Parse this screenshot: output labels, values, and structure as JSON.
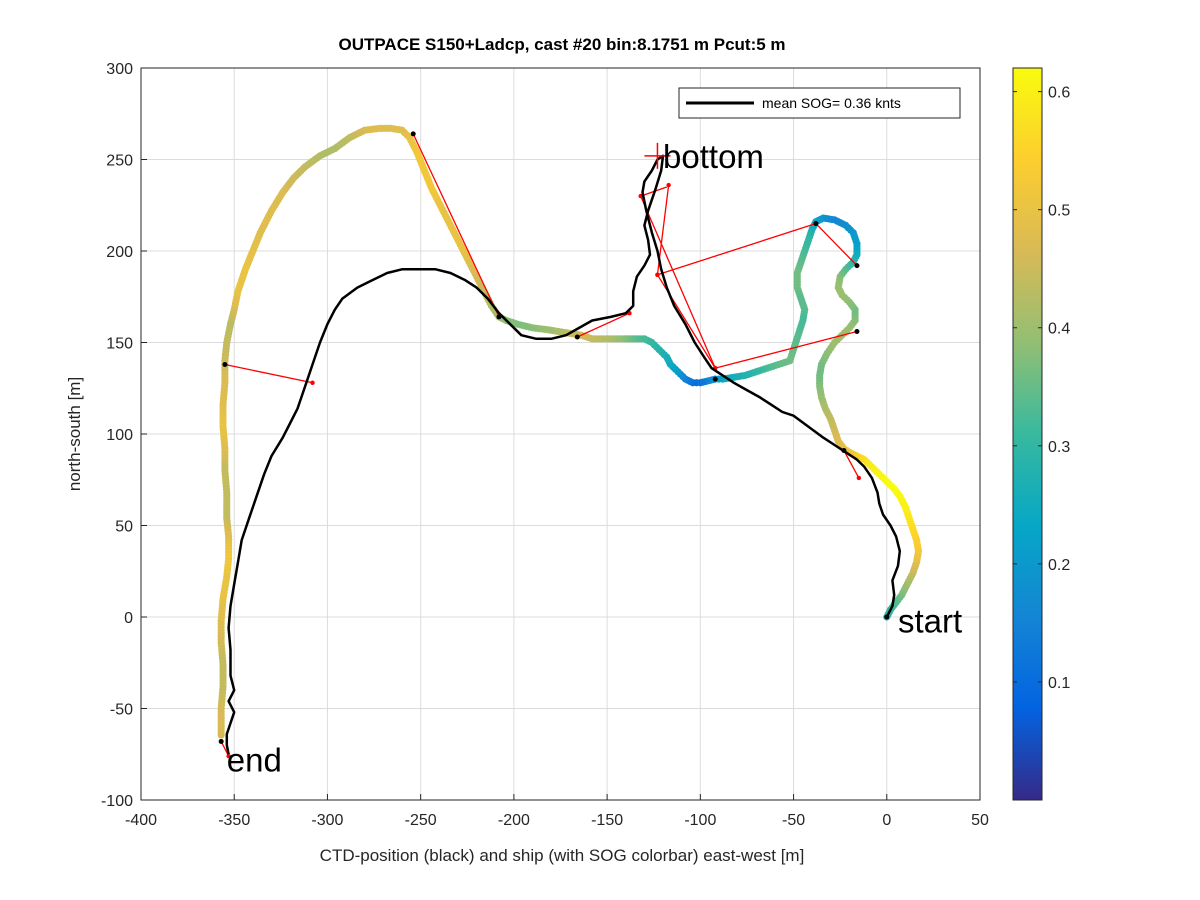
{
  "chart_data": {
    "type": "scatter",
    "title": "OUTPACE S150+Ladcp, cast #20 bin:8.1751 m  Pcut:5 m",
    "xlabel": "CTD-position (black) and ship (with SOG colorbar) east-west [m]",
    "ylabel": "north-south [m]",
    "xlim": [
      -400,
      50
    ],
    "ylim": [
      -100,
      300
    ],
    "xticks": [
      -400,
      -350,
      -300,
      -250,
      -200,
      -150,
      -100,
      -50,
      0,
      50
    ],
    "yticks": [
      -100,
      -50,
      0,
      50,
      100,
      150,
      200,
      250,
      300
    ],
    "grid": true,
    "legend": {
      "entry": "mean SOG=  0.36 knts",
      "placement": "top-right"
    },
    "colorbar": {
      "range": [
        0.0,
        0.62
      ],
      "ticks": [
        "0.1",
        "0.2",
        "0.3",
        "0.4",
        "0.5",
        "0.6"
      ],
      "tick_values": [
        0.1,
        0.2,
        0.3,
        0.4,
        0.5,
        0.6
      ],
      "colormap": "parula"
    },
    "annotations": [
      {
        "text": "bottom",
        "x": -120,
        "y": 252
      },
      {
        "text": "start",
        "x": 6,
        "y": -2
      },
      {
        "text": "end",
        "x": -354,
        "y": -78
      }
    ],
    "ctd_track": {
      "name": "CTD-position",
      "color": "#000000",
      "points": [
        [
          0,
          0
        ],
        [
          3,
          6
        ],
        [
          4,
          12
        ],
        [
          3,
          20
        ],
        [
          6,
          28
        ],
        [
          7,
          36
        ],
        [
          5,
          44
        ],
        [
          2,
          50
        ],
        [
          -2,
          56
        ],
        [
          -4,
          62
        ],
        [
          -5,
          68
        ],
        [
          -8,
          76
        ],
        [
          -12,
          82
        ],
        [
          -16,
          86
        ],
        [
          -22,
          90
        ],
        [
          -28,
          94
        ],
        [
          -34,
          98
        ],
        [
          -42,
          104
        ],
        [
          -50,
          110
        ],
        [
          -56,
          112
        ],
        [
          -62,
          116
        ],
        [
          -68,
          120
        ],
        [
          -75,
          124
        ],
        [
          -82,
          128
        ],
        [
          -88,
          132
        ],
        [
          -94,
          136
        ],
        [
          -98,
          142
        ],
        [
          -103,
          150
        ],
        [
          -108,
          160
        ],
        [
          -114,
          170
        ],
        [
          -118,
          180
        ],
        [
          -121,
          190
        ],
        [
          -123,
          200
        ],
        [
          -126,
          210
        ],
        [
          -129,
          222
        ],
        [
          -131,
          232
        ],
        [
          -130,
          238
        ],
        [
          -126,
          244
        ],
        [
          -123,
          250
        ],
        [
          -120,
          252
        ],
        [
          -121,
          244
        ],
        [
          -124,
          234
        ],
        [
          -128,
          222
        ],
        [
          -130,
          214
        ],
        [
          -128,
          206
        ],
        [
          -127,
          198
        ],
        [
          -130,
          192
        ],
        [
          -134,
          186
        ],
        [
          -136,
          178
        ],
        [
          -136,
          170
        ],
        [
          -140,
          166
        ],
        [
          -148,
          164
        ],
        [
          -158,
          162
        ],
        [
          -165,
          158
        ],
        [
          -172,
          154
        ],
        [
          -180,
          152
        ],
        [
          -188,
          152
        ],
        [
          -196,
          154
        ],
        [
          -202,
          160
        ],
        [
          -208,
          166
        ],
        [
          -214,
          174
        ],
        [
          -220,
          180
        ],
        [
          -226,
          184
        ],
        [
          -234,
          188
        ],
        [
          -242,
          190
        ],
        [
          -252,
          190
        ],
        [
          -260,
          190
        ],
        [
          -268,
          188
        ],
        [
          -276,
          184
        ],
        [
          -284,
          180
        ],
        [
          -292,
          174
        ],
        [
          -296,
          168
        ],
        [
          -300,
          160
        ],
        [
          -304,
          150
        ],
        [
          -308,
          138
        ],
        [
          -312,
          126
        ],
        [
          -316,
          114
        ],
        [
          -320,
          106
        ],
        [
          -324,
          98
        ],
        [
          -330,
          88
        ],
        [
          -334,
          78
        ],
        [
          -338,
          66
        ],
        [
          -342,
          54
        ],
        [
          -346,
          42
        ],
        [
          -348,
          30
        ],
        [
          -350,
          18
        ],
        [
          -352,
          6
        ],
        [
          -353,
          -6
        ],
        [
          -352,
          -18
        ],
        [
          -352,
          -32
        ],
        [
          -350,
          -40
        ],
        [
          -353,
          -46
        ],
        [
          -350,
          -52
        ],
        [
          -352,
          -58
        ],
        [
          -354,
          -64
        ],
        [
          -354,
          -70
        ],
        [
          -353,
          -75
        ]
      ]
    },
    "ship_track": {
      "name": "ship (SOG)",
      "points": [
        [
          0,
          0,
          0.28
        ],
        [
          2,
          4,
          0.3
        ],
        [
          5,
          8,
          0.33
        ],
        [
          8,
          12,
          0.36
        ],
        [
          11,
          18,
          0.4
        ],
        [
          14,
          24,
          0.44
        ],
        [
          16,
          30,
          0.48
        ],
        [
          17,
          36,
          0.52
        ],
        [
          16,
          42,
          0.54
        ],
        [
          14,
          48,
          0.56
        ],
        [
          12,
          54,
          0.58
        ],
        [
          10,
          60,
          0.6
        ],
        [
          7,
          66,
          0.61
        ],
        [
          4,
          70,
          0.62
        ],
        [
          0,
          74,
          0.62
        ],
        [
          -4,
          78,
          0.61
        ],
        [
          -8,
          82,
          0.6
        ],
        [
          -12,
          86,
          0.58
        ],
        [
          -16,
          88,
          0.55
        ],
        [
          -20,
          90,
          0.52
        ],
        [
          -23,
          92,
          0.5
        ],
        [
          -26,
          96,
          0.48
        ],
        [
          -28,
          102,
          0.46
        ],
        [
          -30,
          108,
          0.44
        ],
        [
          -33,
          114,
          0.42
        ],
        [
          -35,
          120,
          0.4
        ],
        [
          -36,
          126,
          0.38
        ],
        [
          -36,
          132,
          0.36
        ],
        [
          -35,
          138,
          0.36
        ],
        [
          -32,
          144,
          0.38
        ],
        [
          -28,
          150,
          0.4
        ],
        [
          -24,
          154,
          0.4
        ],
        [
          -20,
          158,
          0.4
        ],
        [
          -17,
          162,
          0.38
        ],
        [
          -17,
          168,
          0.36
        ],
        [
          -20,
          172,
          0.38
        ],
        [
          -24,
          176,
          0.4
        ],
        [
          -26,
          180,
          0.4
        ],
        [
          -25,
          186,
          0.38
        ],
        [
          -22,
          190,
          0.34
        ],
        [
          -18,
          194,
          0.3
        ],
        [
          -16,
          198,
          0.26
        ],
        [
          -16,
          204,
          0.22
        ],
        [
          -18,
          210,
          0.2
        ],
        [
          -22,
          214,
          0.18
        ],
        [
          -28,
          217,
          0.16
        ],
        [
          -34,
          218,
          0.18
        ],
        [
          -38,
          216,
          0.22
        ],
        [
          -40,
          212,
          0.26
        ],
        [
          -42,
          206,
          0.3
        ],
        [
          -44,
          200,
          0.32
        ],
        [
          -46,
          194,
          0.34
        ],
        [
          -48,
          188,
          0.36
        ],
        [
          -48,
          180,
          0.36
        ],
        [
          -46,
          174,
          0.34
        ],
        [
          -44,
          168,
          0.34
        ],
        [
          -45,
          162,
          0.32
        ],
        [
          -52,
          140,
          0.36
        ],
        [
          -58,
          138,
          0.35
        ],
        [
          -64,
          136,
          0.33
        ],
        [
          -70,
          134,
          0.3
        ],
        [
          -76,
          132,
          0.28
        ],
        [
          -82,
          131,
          0.26
        ],
        [
          -88,
          130,
          0.24
        ],
        [
          -92,
          130,
          0.2
        ],
        [
          -96,
          129,
          0.16
        ],
        [
          -100,
          128,
          0.12
        ],
        [
          -104,
          128,
          0.1
        ],
        [
          -108,
          130,
          0.14
        ],
        [
          -112,
          134,
          0.2
        ],
        [
          -116,
          138,
          0.24
        ],
        [
          -118,
          142,
          0.26
        ],
        [
          -122,
          146,
          0.28
        ],
        [
          -126,
          150,
          0.3
        ],
        [
          -130,
          152,
          0.32
        ],
        [
          -136,
          152,
          0.34
        ],
        [
          -142,
          152,
          0.38
        ],
        [
          -150,
          152,
          0.42
        ],
        [
          -158,
          152,
          0.44
        ],
        [
          -164,
          154,
          0.46
        ],
        [
          -170,
          155,
          0.44
        ],
        [
          -176,
          156,
          0.42
        ],
        [
          -182,
          157,
          0.4
        ],
        [
          -190,
          158,
          0.38
        ],
        [
          -198,
          160,
          0.37
        ],
        [
          -204,
          162,
          0.38
        ],
        [
          -208,
          164,
          0.4
        ],
        [
          -212,
          170,
          0.42
        ],
        [
          -216,
          178,
          0.44
        ],
        [
          -220,
          186,
          0.46
        ],
        [
          -224,
          194,
          0.48
        ],
        [
          -228,
          202,
          0.5
        ],
        [
          -232,
          210,
          0.5
        ],
        [
          -236,
          218,
          0.5
        ],
        [
          -240,
          226,
          0.5
        ],
        [
          -244,
          234,
          0.52
        ],
        [
          -248,
          244,
          0.52
        ],
        [
          -252,
          254,
          0.52
        ],
        [
          -256,
          262,
          0.5
        ],
        [
          -260,
          266,
          0.48
        ],
        [
          -266,
          267,
          0.48
        ],
        [
          -272,
          267,
          0.48
        ],
        [
          -280,
          266,
          0.47
        ],
        [
          -288,
          262,
          0.44
        ],
        [
          -296,
          256,
          0.42
        ],
        [
          -304,
          252,
          0.42
        ],
        [
          -312,
          246,
          0.44
        ],
        [
          -318,
          240,
          0.45
        ],
        [
          -324,
          232,
          0.47
        ],
        [
          -330,
          222,
          0.48
        ],
        [
          -336,
          210,
          0.48
        ],
        [
          -340,
          200,
          0.49
        ],
        [
          -344,
          190,
          0.5
        ],
        [
          -348,
          178,
          0.5
        ],
        [
          -350,
          168,
          0.47
        ],
        [
          -352,
          160,
          0.43
        ],
        [
          -354,
          150,
          0.44
        ],
        [
          -355,
          140,
          0.45
        ],
        [
          -355,
          128,
          0.47
        ],
        [
          -356,
          116,
          0.48
        ],
        [
          -356,
          104,
          0.5
        ],
        [
          -355,
          92,
          0.48
        ],
        [
          -355,
          80,
          0.44
        ],
        [
          -354,
          68,
          0.44
        ],
        [
          -354,
          54,
          0.44
        ],
        [
          -353,
          44,
          0.48
        ],
        [
          -353,
          32,
          0.52
        ],
        [
          -354,
          22,
          0.5
        ],
        [
          -356,
          10,
          0.5
        ],
        [
          -357,
          -2,
          0.48
        ],
        [
          -357,
          -14,
          0.46
        ],
        [
          -356,
          -26,
          0.44
        ],
        [
          -356,
          -38,
          0.44
        ],
        [
          -357,
          -50,
          0.46
        ],
        [
          -357,
          -60,
          0.47
        ],
        [
          -357,
          -66,
          0.46
        ]
      ]
    },
    "connector_lines": {
      "color": "#ff0000",
      "segments": [
        [
          [
            -355,
            138
          ],
          [
            -308,
            128
          ]
        ],
        [
          [
            -254,
            264
          ],
          [
            -208,
            164
          ]
        ],
        [
          [
            -166,
            153
          ],
          [
            -138,
            166
          ]
        ],
        [
          [
            -118,
            235
          ],
          [
            -132,
            230
          ]
        ],
        [
          [
            -132,
            230
          ],
          [
            -92,
            136
          ]
        ],
        [
          [
            -38,
            215
          ],
          [
            -123,
            187
          ]
        ],
        [
          [
            -123,
            187
          ],
          [
            -117,
            236
          ]
        ],
        [
          [
            -16,
            192
          ],
          [
            -38,
            215
          ]
        ],
        [
          [
            -16,
            156
          ],
          [
            -92,
            136
          ]
        ],
        [
          [
            -92,
            136
          ],
          [
            -123,
            187
          ]
        ],
        [
          [
            -23,
            91
          ],
          [
            -15,
            76
          ]
        ],
        [
          [
            -357,
            -68
          ],
          [
            -353,
            -76
          ]
        ]
      ]
    },
    "cast_markers": {
      "color": "#000000",
      "points": [
        [
          -355,
          138
        ],
        [
          -254,
          264
        ],
        [
          -208,
          164
        ],
        [
          -166,
          153
        ],
        [
          -38,
          215
        ],
        [
          -16,
          192
        ],
        [
          -16,
          156
        ],
        [
          -92,
          130
        ],
        [
          -23,
          91
        ],
        [
          0,
          0
        ],
        [
          -357,
          -68
        ]
      ]
    },
    "bottom_marker": {
      "x": -123,
      "y": 252,
      "color": "#ff0000"
    }
  }
}
